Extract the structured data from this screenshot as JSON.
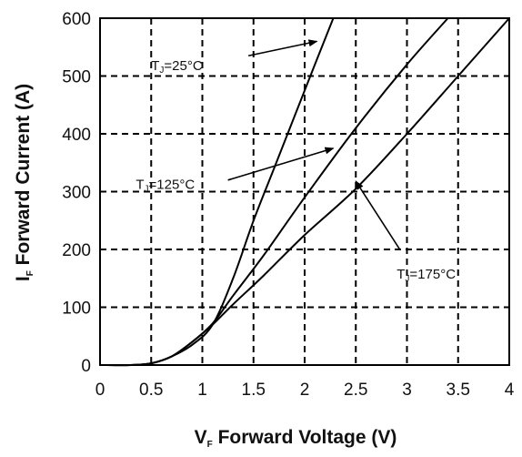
{
  "chart_data": {
    "type": "line",
    "title": "",
    "xlabel": {
      "main": "V",
      "sub": "F",
      "rest": " Forward Voltage (V)"
    },
    "ylabel": {
      "main": "I",
      "sub": "F",
      "rest": " Forward Current (A)"
    },
    "xlim": [
      0,
      4
    ],
    "ylim": [
      0,
      600
    ],
    "x_ticks": [
      0,
      0.5,
      1,
      1.5,
      2,
      2.5,
      3,
      3.5,
      4
    ],
    "x_tick_labels": [
      "0",
      "0.5",
      "1",
      "1.5",
      "2",
      "2.5",
      "3",
      "3.5",
      "4"
    ],
    "y_ticks": [
      0,
      100,
      200,
      300,
      400,
      500,
      600
    ],
    "y_tick_labels": [
      "0",
      "100",
      "200",
      "300",
      "400",
      "500",
      "600"
    ],
    "grid": true,
    "grid_style": "dashed",
    "series": [
      {
        "x": [
          0,
          0.3,
          0.5,
          0.7,
          0.9,
          1.1,
          1.3,
          1.5,
          1.7,
          1.9,
          2.1,
          2.28
        ],
        "y": [
          0,
          0,
          3,
          15,
          35,
          70,
          150,
          250,
          340,
          430,
          520,
          600
        ]
      },
      {
        "x": [
          0,
          0.3,
          0.5,
          0.7,
          0.9,
          1.1,
          1.3,
          1.6,
          2.0,
          2.5,
          3.0,
          3.4
        ],
        "y": [
          0,
          0,
          3,
          15,
          40,
          72,
          120,
          190,
          290,
          410,
          520,
          600
        ]
      },
      {
        "x": [
          0,
          0.3,
          0.5,
          0.7,
          0.9,
          1.1,
          1.3,
          1.6,
          2.0,
          2.5,
          3.0,
          3.5,
          4.0
        ],
        "y": [
          0,
          0,
          3,
          15,
          40,
          70,
          105,
          155,
          225,
          305,
          400,
          500,
          600
        ]
      }
    ],
    "annotations": [
      {
        "main": "T",
        "sub": "J",
        "rest": "=25°C",
        "tx": 0.5,
        "ty": 510,
        "ax": 1.45,
        "ay": 535,
        "hx": 2.12,
        "hy": 560
      },
      {
        "main": "T",
        "sub": "J",
        "rest": "=125°C",
        "tx": 0.35,
        "ty": 305,
        "ax": 1.25,
        "ay": 320,
        "hx": 2.28,
        "hy": 375
      },
      {
        "main": "T",
        "sub": "J",
        "rest": "=175°C",
        "tx": 2.9,
        "ty": 150,
        "ax": 2.93,
        "ay": 200,
        "hx": 2.5,
        "hy": 318
      }
    ],
    "colors": {
      "line": "#000000",
      "grid": "#000000",
      "background": "#ffffff"
    }
  }
}
